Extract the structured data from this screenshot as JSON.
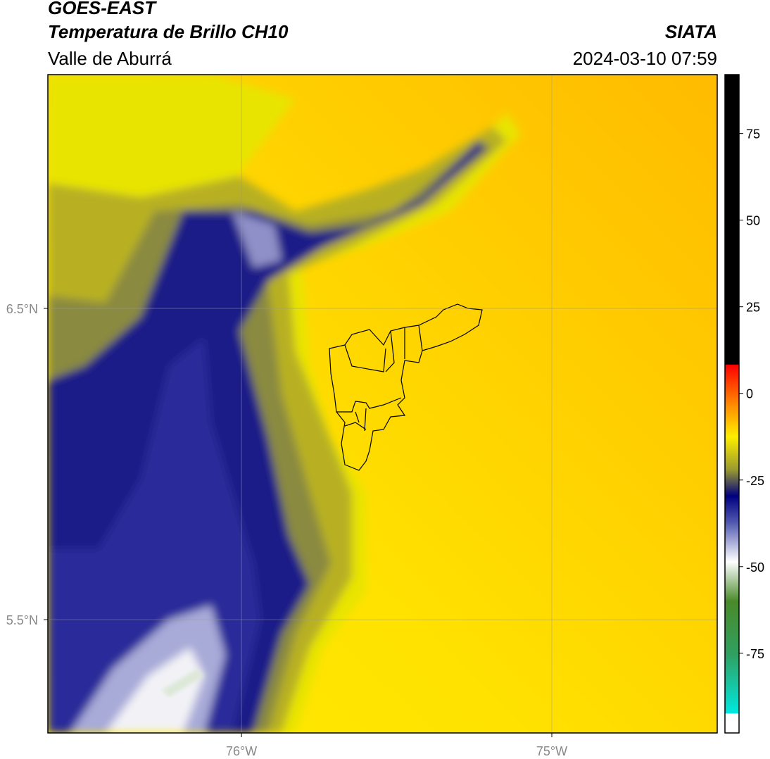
{
  "header": {
    "satellite": "GOES-EAST",
    "product": "Temperatura de Brillo CH10",
    "region": "Valle de Aburrá",
    "agency": "SIATA",
    "datetime": "2024-03-10 07:59"
  },
  "map": {
    "xlim": [
      -76.624,
      -74.467
    ],
    "ylim": [
      5.136,
      7.251
    ],
    "xticks": [
      {
        "value": -76,
        "label": "76°W"
      },
      {
        "value": -75,
        "label": "75°W"
      }
    ],
    "yticks": [
      {
        "value": 6.5,
        "label": "6.5°N"
      },
      {
        "value": 5.5,
        "label": "5.5°N"
      }
    ],
    "grid": true
  },
  "colorbar": {
    "lim": [
      -98,
      92
    ],
    "ticks": [
      75,
      50,
      25,
      0,
      -25,
      -50,
      -75
    ]
  }
}
